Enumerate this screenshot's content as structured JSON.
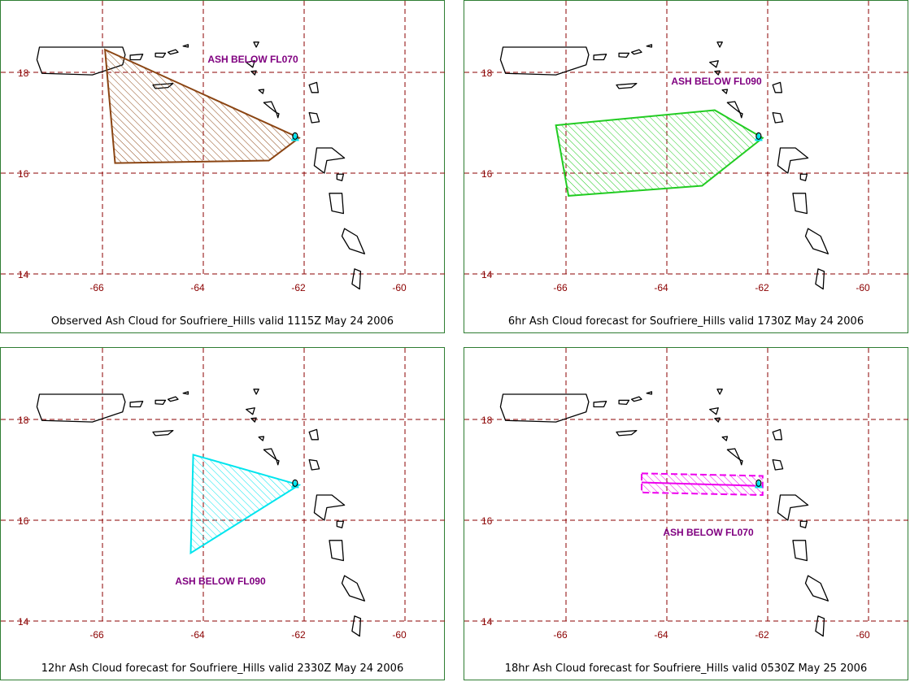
{
  "panels": [
    {
      "id": "observed",
      "caption": "Observed Ash Cloud for Soufriere_Hills valid 1115Z May 24 2006",
      "label": "ASH BELOW FL070",
      "color": "#8b4513",
      "polygon_lonlat": [
        [
          -65.95,
          18.45
        ],
        [
          -62.1,
          16.7
        ],
        [
          -62.7,
          16.25
        ],
        [
          -65.75,
          16.2
        ]
      ]
    },
    {
      "id": "fc6",
      "caption": "6hr Ash Cloud forecast for Soufriere_Hills valid 1730Z May 24 2006",
      "label": "ASH BELOW FL090",
      "color": "#22cc22",
      "polygon_lonlat": [
        [
          -66.2,
          16.95
        ],
        [
          -63.05,
          17.25
        ],
        [
          -62.1,
          16.7
        ],
        [
          -63.3,
          15.75
        ],
        [
          -65.95,
          15.55
        ]
      ]
    },
    {
      "id": "fc12",
      "caption": "12hr Ash Cloud forecast for Soufriere_Hills valid 2330Z May 24 2006",
      "label": "ASH BELOW FL090",
      "color": "#00e5ee",
      "polygon_lonlat": [
        [
          -64.2,
          17.3
        ],
        [
          -62.1,
          16.7
        ],
        [
          -64.25,
          15.35
        ]
      ]
    },
    {
      "id": "fc18",
      "caption": "18hr Ash Cloud forecast for Soufriere_Hills valid 0530Z May 25 2006",
      "label": "ASH BELOW FL070",
      "color": "#ee00ee",
      "polygon_lonlat": [
        [
          -64.5,
          16.93
        ],
        [
          -62.1,
          16.88
        ],
        [
          -62.1,
          16.5
        ],
        [
          -64.5,
          16.55
        ]
      ]
    }
  ],
  "axes": {
    "lon_ticks": [
      -66,
      -64,
      -62,
      -60
    ],
    "lat_ticks": [
      18,
      16,
      14
    ],
    "lon_labels": [
      "-66",
      "-64",
      "-62",
      "-60"
    ],
    "lat_labels": [
      "18",
      "16",
      "14"
    ]
  },
  "volcano": {
    "name": "Soufriere_Hills",
    "lon": -62.18,
    "lat": 16.72,
    "marker_color": "#00e5ee"
  },
  "style": {
    "grid_color": "#8b0000",
    "label_color": "#800080",
    "axis_label_color": "#8b0000"
  }
}
